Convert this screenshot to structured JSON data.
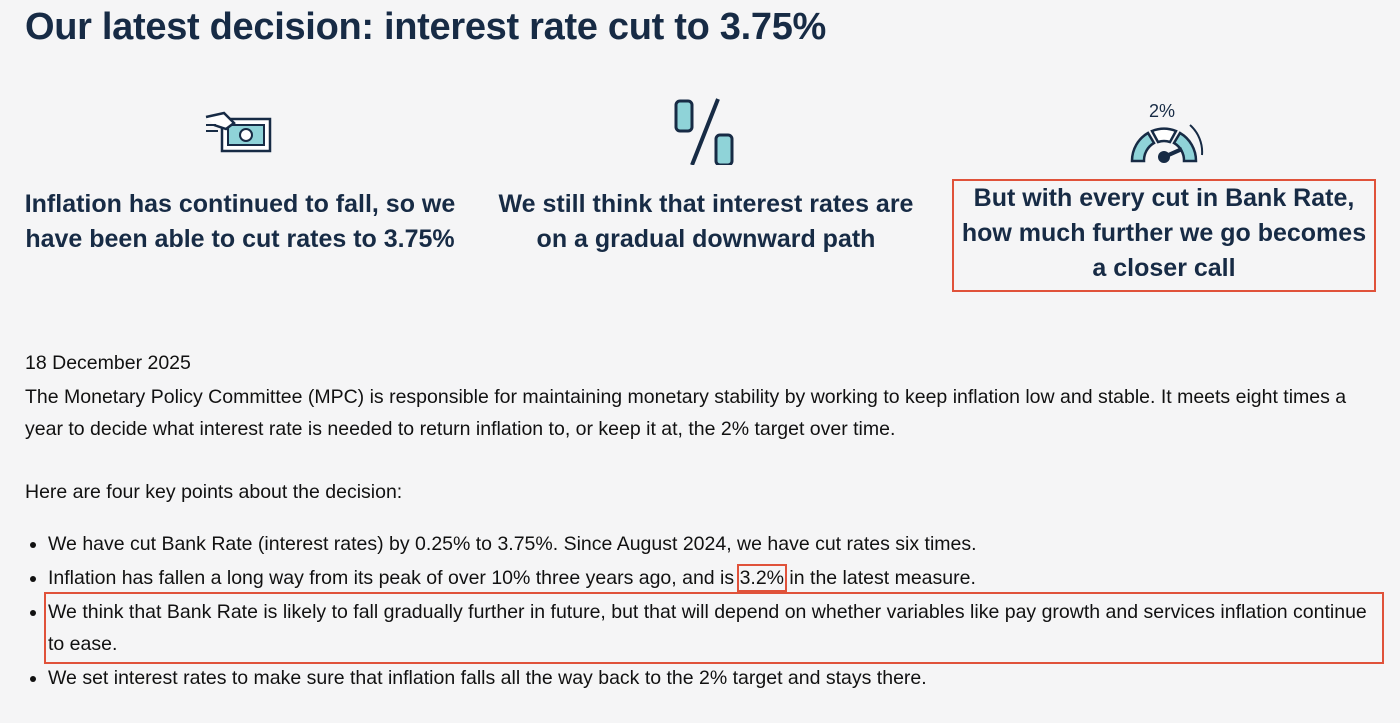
{
  "header": {
    "title": "Our latest decision: interest rate cut to 3.75%"
  },
  "cards": [
    {
      "text": "Inflation has continued to fall, so we have been able to cut rates to 3.75%"
    },
    {
      "text": "We still think that interest rates are on a gradual downward path"
    },
    {
      "icon_label": "2%",
      "text": "But with every cut in Bank Rate, how much further we go becomes a closer call"
    }
  ],
  "date": "18 December 2025",
  "intro": "The Monetary Policy Committee (MPC) is responsible for maintaining monetary stability by working to keep inflation low and stable. It meets eight times a year to decide what interest rate is needed to return inflation to, or keep it at, the 2% target over time.",
  "lead": "Here are four key points about the decision:",
  "bullets": [
    {
      "text": "We have cut Bank Rate (interest rates) by 0.25% to 3.75%. Since August 2024, we have cut rates six times."
    },
    {
      "before": "Inflation has fallen a long way from its peak of over 10% three years ago, and is ",
      "highlight": "3.2%",
      "after": " in the latest measure."
    },
    {
      "text": "We think that Bank Rate is likely to fall gradually further in future, but that will depend on whether variables like pay growth and services inflation continue to ease."
    },
    {
      "text": "We set interest rates to make sure that inflation falls all the way back to the 2% target and stays there."
    }
  ]
}
